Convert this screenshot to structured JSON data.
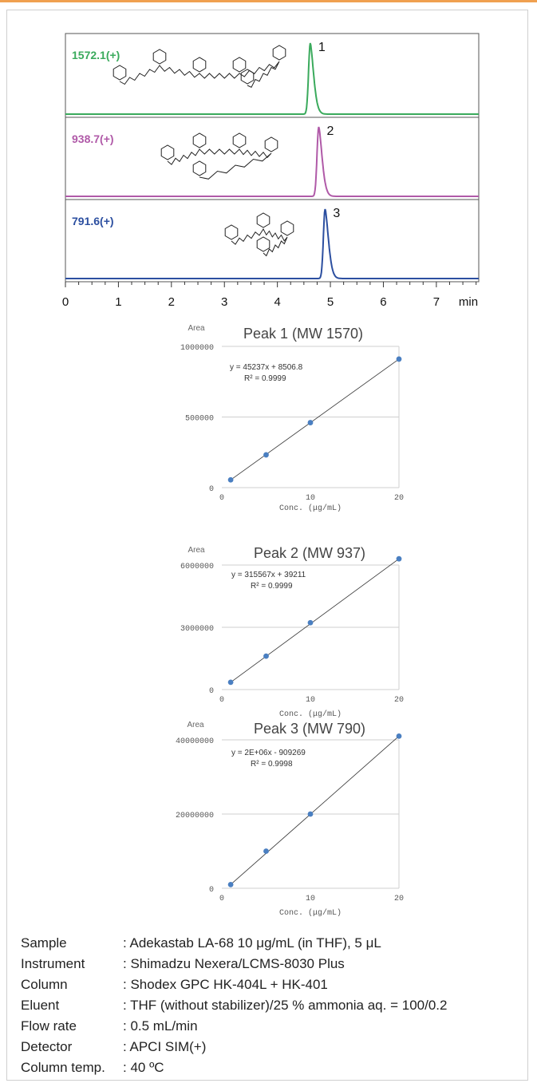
{
  "chromatogram": {
    "x_ticks": [
      "0",
      "1",
      "2",
      "3",
      "4",
      "5",
      "6",
      "7"
    ],
    "x_unit": "min",
    "traces": [
      {
        "mz_label": "1572.1(+)",
        "peak_number": "1",
        "peak_time": 4.62,
        "color": "#3aaa5c"
      },
      {
        "mz_label": "938.7(+)",
        "peak_number": "2",
        "peak_time": 4.78,
        "color": "#b05aa8"
      },
      {
        "mz_label": "791.6(+)",
        "peak_number": "3",
        "peak_time": 4.9,
        "color": "#2c4fa0"
      }
    ]
  },
  "chart_data": [
    {
      "type": "scatter",
      "title": "Peak 1 (MW  1570)",
      "ylabel": "Area",
      "xlabel": "Conc. (μg/mL)",
      "x": [
        1,
        5,
        10,
        20
      ],
      "y": [
        55000,
        232000,
        460000,
        910000
      ],
      "xlim": [
        0,
        20
      ],
      "ylim": [
        0,
        1000000
      ],
      "x_ticks": [
        "0",
        "10",
        "20"
      ],
      "y_ticks": [
        "0",
        "500000",
        "1000000"
      ],
      "equation": "y = 45237x + 8506.8",
      "r2": "R² = 0.9999",
      "trendline": {
        "slope": 45237,
        "intercept": 8506.8
      }
    },
    {
      "type": "scatter",
      "title": "Peak 2 (MW 937)",
      "ylabel": "Area",
      "xlabel": "Conc. (μg/mL)",
      "x": [
        1,
        5,
        10,
        20
      ],
      "y": [
        350000,
        1610000,
        3220000,
        6300000
      ],
      "xlim": [
        0,
        20
      ],
      "ylim": [
        0,
        6000000
      ],
      "x_ticks": [
        "0",
        "10",
        "20"
      ],
      "y_ticks": [
        "0",
        "3000000",
        "6000000"
      ],
      "equation": "y = 315567x + 39211",
      "r2": "R² = 0.9999",
      "trendline": {
        "slope": 315567,
        "intercept": 39211
      }
    },
    {
      "type": "scatter",
      "title": "Peak 3 (MW 790)",
      "ylabel": "Area",
      "xlabel": "Conc. (μg/mL)",
      "x": [
        1,
        5,
        10,
        20
      ],
      "y": [
        1000000,
        10000000,
        20000000,
        41000000
      ],
      "xlim": [
        0,
        20
      ],
      "ylim": [
        0,
        40000000
      ],
      "x_ticks": [
        "0",
        "10",
        "20"
      ],
      "y_ticks": [
        "0",
        "20000000",
        "40000000"
      ],
      "equation": "y = 2E+06x - 909269",
      "r2": "R² = 0.9998",
      "trendline": {
        "slope": 2045000,
        "intercept": -909269
      }
    }
  ],
  "conditions": [
    {
      "label": "Sample",
      "value": ": Adekastab LA-68 10 μg/mL (in THF), 5 μL"
    },
    {
      "label": "Instrument",
      "value": ": Shimadzu Nexera/LCMS-8030 Plus"
    },
    {
      "label": "Column",
      "value": ": Shodex GPC HK-404L + HK-401"
    },
    {
      "label": "Eluent",
      "value": ": THF (without stabilizer)/25 % ammonia aq. = 100/0.2"
    },
    {
      "label": "Flow rate",
      "value": ": 0.5 mL/min"
    },
    {
      "label": "Detector",
      "value": ": APCI SIM(+)"
    },
    {
      "label": "Column temp.",
      "value": ": 40 ºC"
    }
  ]
}
